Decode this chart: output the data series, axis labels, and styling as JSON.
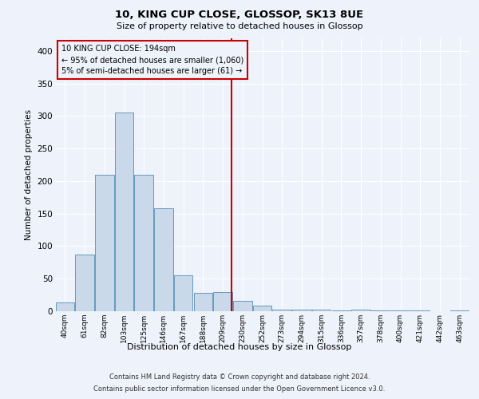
{
  "title": "10, KING CUP CLOSE, GLOSSOP, SK13 8UE",
  "subtitle": "Size of property relative to detached houses in Glossop",
  "xlabel": "Distribution of detached houses by size in Glossop",
  "ylabel": "Number of detached properties",
  "footer_line1": "Contains HM Land Registry data © Crown copyright and database right 2024.",
  "footer_line2": "Contains public sector information licensed under the Open Government Licence v3.0.",
  "annotation_title": "10 KING CUP CLOSE: 194sqm",
  "annotation_line1": "← 95% of detached houses are smaller (1,060)",
  "annotation_line2": "5% of semi-detached houses are larger (61) →",
  "bar_color": "#c9d9ea",
  "bar_edge_color": "#6699bb",
  "vline_color": "#cc0000",
  "annotation_box_edgecolor": "#cc0000",
  "background_color": "#eef2fb",
  "grid_color": "#ffffff",
  "categories": [
    "40sqm",
    "61sqm",
    "82sqm",
    "103sqm",
    "125sqm",
    "146sqm",
    "167sqm",
    "188sqm",
    "209sqm",
    "230sqm",
    "252sqm",
    "273sqm",
    "294sqm",
    "315sqm",
    "336sqm",
    "357sqm",
    "378sqm",
    "400sqm",
    "421sqm",
    "442sqm",
    "463sqm"
  ],
  "values": [
    13,
    87,
    210,
    305,
    210,
    158,
    55,
    28,
    30,
    16,
    8,
    3,
    2,
    2,
    1,
    2,
    1,
    1,
    1,
    0,
    1
  ],
  "ylim": [
    0,
    420
  ],
  "yticks": [
    0,
    50,
    100,
    150,
    200,
    250,
    300,
    350,
    400
  ],
  "vline_pos": 8.45
}
